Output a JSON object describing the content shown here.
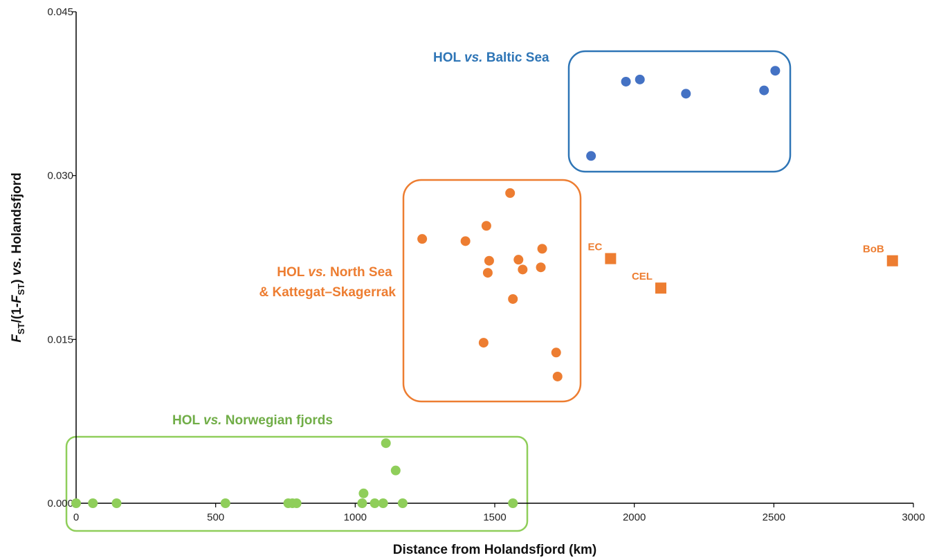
{
  "chart_data": {
    "type": "scatter",
    "title": "",
    "xlabel": "Distance from Holandsfjord (km)",
    "ylabel": "F_ST/(1-F_ST) vs. Holandsfjord",
    "ylabel_parts": [
      "F",
      "ST",
      "/(1-",
      "F",
      "ST",
      ") ",
      "vs.",
      " Holandsfjord"
    ],
    "xlim": [
      0,
      3000
    ],
    "ylim": [
      0,
      0.045
    ],
    "x_ticks": [
      0,
      500,
      1000,
      1500,
      2000,
      2500,
      3000
    ],
    "x_tick_labels": [
      "0",
      "500",
      "1000",
      "1500",
      "2000",
      "2500",
      "3000"
    ],
    "y_ticks": [
      0,
      0.015,
      0.03,
      0.045
    ],
    "y_tick_labels": [
      "0.000",
      "0.015",
      "0.030",
      "0.045"
    ],
    "grid": false,
    "legend": "none",
    "colors": {
      "baltic": "#4472c4",
      "baltic_box": "#2e75b6",
      "north_sea": "#ed7d31",
      "norwegian": "#8fce5a",
      "norwegian_box": "#8fce5a",
      "norwegian_label": "#70ad47",
      "axis": "#000000"
    },
    "groups": [
      {
        "name": "baltic",
        "label_parts": [
          "HOL ",
          "vs.",
          " Baltic Sea"
        ],
        "points": [
          {
            "x": 1845,
            "y": 0.0318
          },
          {
            "x": 1970,
            "y": 0.0386
          },
          {
            "x": 2020,
            "y": 0.0388
          },
          {
            "x": 2185,
            "y": 0.0375
          },
          {
            "x": 2465,
            "y": 0.0378
          },
          {
            "x": 2505,
            "y": 0.0396
          }
        ]
      },
      {
        "name": "north_sea",
        "label_parts": [
          "HOL ",
          "vs.",
          " North Sea"
        ],
        "label_line2": "& Kattegat–Skagerrak",
        "points": [
          {
            "x": 1240,
            "y": 0.0242
          },
          {
            "x": 1395,
            "y": 0.024
          },
          {
            "x": 1460,
            "y": 0.0147
          },
          {
            "x": 1470,
            "y": 0.0254
          },
          {
            "x": 1475,
            "y": 0.0211
          },
          {
            "x": 1480,
            "y": 0.0222
          },
          {
            "x": 1555,
            "y": 0.0284
          },
          {
            "x": 1565,
            "y": 0.0187
          },
          {
            "x": 1585,
            "y": 0.0223
          },
          {
            "x": 1600,
            "y": 0.0214
          },
          {
            "x": 1665,
            "y": 0.0216
          },
          {
            "x": 1670,
            "y": 0.0233
          },
          {
            "x": 1720,
            "y": 0.0138
          },
          {
            "x": 1725,
            "y": 0.0116
          }
        ]
      },
      {
        "name": "north_sea_labeled",
        "marker": "square",
        "points": [
          {
            "x": 1915,
            "y": 0.0224,
            "label": "EC"
          },
          {
            "x": 2095,
            "y": 0.0197,
            "label": "CEL"
          },
          {
            "x": 2925,
            "y": 0.0222,
            "label": "BoB"
          }
        ]
      },
      {
        "name": "norwegian",
        "label_parts": [
          "HOL ",
          "vs.",
          " Norwegian fjords"
        ],
        "points": [
          {
            "x": 0,
            "y": 0.0
          },
          {
            "x": 60,
            "y": 0.0
          },
          {
            "x": 145,
            "y": 0.0
          },
          {
            "x": 535,
            "y": 0.0
          },
          {
            "x": 760,
            "y": 0.0
          },
          {
            "x": 775,
            "y": 0.0
          },
          {
            "x": 790,
            "y": 0.0
          },
          {
            "x": 1025,
            "y": 0.0
          },
          {
            "x": 1030,
            "y": 0.0009
          },
          {
            "x": 1070,
            "y": 0.0
          },
          {
            "x": 1100,
            "y": 0.0
          },
          {
            "x": 1110,
            "y": 0.0055
          },
          {
            "x": 1145,
            "y": 0.003
          },
          {
            "x": 1170,
            "y": 0.0
          },
          {
            "x": 1565,
            "y": 0.0
          }
        ]
      }
    ]
  }
}
